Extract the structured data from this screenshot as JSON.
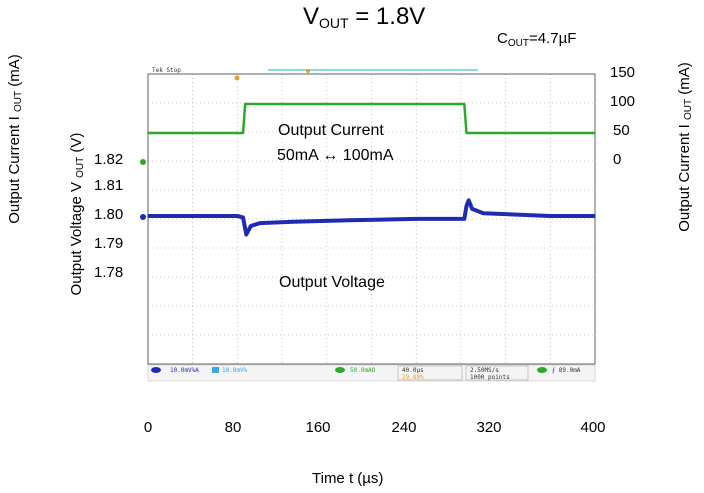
{
  "chart_data": {
    "type": "line",
    "title_main": "V",
    "title_sub": "OUT",
    "title_rest": " = 1.8V",
    "cout_main": "C",
    "cout_sub": "OUT",
    "cout_rest": "=4.7µF",
    "xlabel": "Time t (µs)",
    "x_ticks": [
      "0",
      "80",
      "160",
      "240",
      "320",
      "400"
    ],
    "xlim": [
      0,
      400
    ],
    "left_outer_label_main": "Output Current I ",
    "left_outer_label_sub": "OUT",
    "left_outer_label_rest": " (mA)",
    "left_inner_label_main": "Output Voltage V ",
    "left_inner_label_sub": "OUT",
    "left_inner_label_rest": " (V)",
    "right_label_main": "Output Current I ",
    "right_label_sub": "OUT",
    "right_label_rest": " (mA)",
    "voltage_ticks": [
      "1.82",
      "1.81",
      "1.80",
      "1.79",
      "1.78"
    ],
    "current_ticks": [
      "150",
      "100",
      "50",
      "0"
    ],
    "annotation_current_line1": "Output Current",
    "annotation_current_line2": "50mA ↔ 100mA",
    "annotation_voltage": "Output Voltage",
    "series": [
      {
        "name": "Output Current",
        "color": "#2da82d",
        "axis": "mA",
        "x": [
          0,
          85,
          87,
          283,
          285,
          400
        ],
        "y": [
          50,
          50,
          100,
          100,
          50,
          50
        ]
      },
      {
        "name": "Output Voltage",
        "color": "#1f2bb0",
        "axis": "V",
        "x": [
          0,
          80,
          85,
          88,
          92,
          100,
          130,
          180,
          240,
          283,
          285,
          287,
          290,
          300,
          330,
          360,
          400
        ],
        "y": [
          1.8,
          1.8,
          1.7995,
          1.7935,
          1.7965,
          1.7975,
          1.798,
          1.7985,
          1.799,
          1.799,
          1.8035,
          1.8055,
          1.8025,
          1.801,
          1.8005,
          1.8,
          1.8
        ]
      }
    ]
  },
  "scope": {
    "brand": "Tek Stop",
    "ch1": "10.0mV%A",
    "ch2": "10.0mV%",
    "ch4": "50.0mAΩ",
    "time": "40.0µs",
    "delay": "29.80%",
    "rate": "2.50MS/s",
    "points": "1000 points",
    "trig": "89.0mA"
  },
  "colors": {
    "grid": "#9a9a9a",
    "frame": "#606060",
    "current": "#2da82d",
    "voltage": "#1f2bb0"
  }
}
